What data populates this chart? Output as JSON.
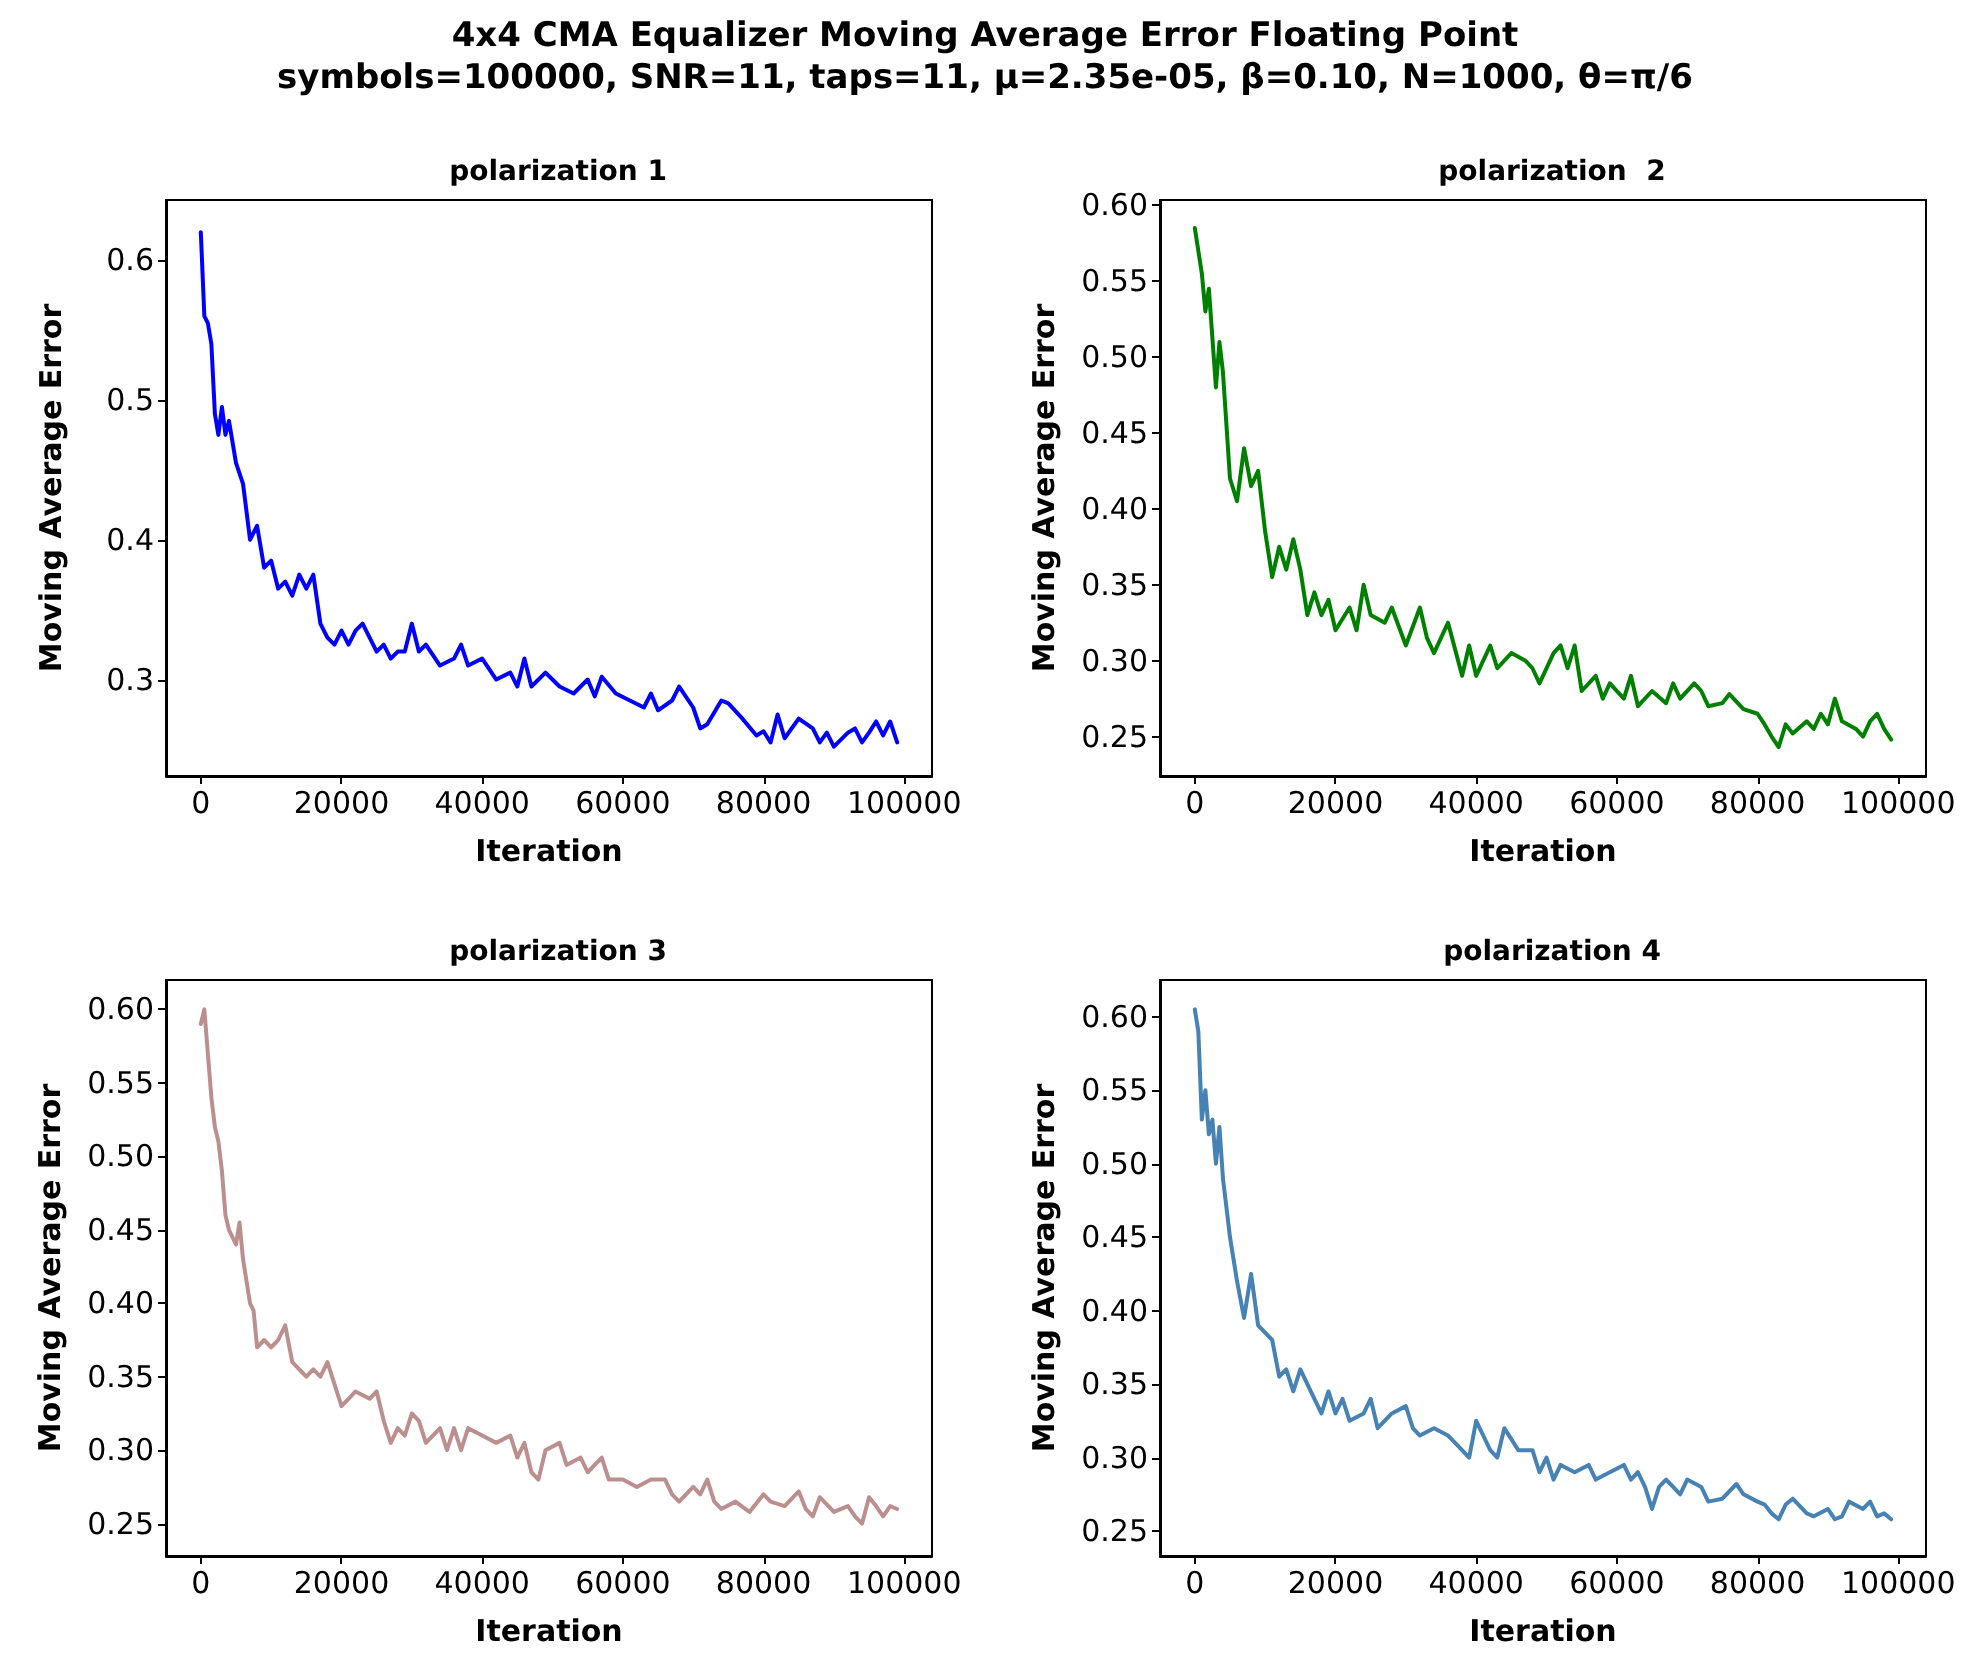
{
  "chart_data": [
    {
      "type": "line",
      "title": "polarization 1",
      "xlabel": "Iteration",
      "ylabel": "Moving Average Error",
      "annotations": [
        "4x4 CMA Equalizer Moving Average Error Floating Point",
        "symbols=100000, SNR=11, taps=11, μ=2.35e-05, β=0.10, N=1000, θ=π/6"
      ],
      "x": [
        0,
        500,
        1000,
        1500,
        2000,
        2500,
        3000,
        3500,
        4000,
        5000,
        6000,
        7000,
        8000,
        9000,
        10000,
        11000,
        12000,
        13000,
        14000,
        15000,
        16000,
        17000,
        18000,
        19000,
        20000,
        21000,
        22000,
        23000,
        24000,
        25000,
        26000,
        27000,
        28000,
        29000,
        30000,
        31000,
        32000,
        34000,
        36000,
        37000,
        38000,
        40000,
        42000,
        44000,
        45000,
        46000,
        47000,
        49000,
        51000,
        53000,
        55000,
        56000,
        57000,
        59000,
        61000,
        63000,
        64000,
        65000,
        67000,
        68000,
        70000,
        71000,
        72000,
        74000,
        75000,
        77000,
        79000,
        80000,
        81000,
        82000,
        83000,
        85000,
        87000,
        88000,
        89000,
        90000,
        92000,
        93000,
        94000,
        95000,
        96000,
        97000,
        98000,
        99000
      ],
      "series": [
        {
          "color": "#0000ff",
          "values": [
            0.62,
            0.56,
            0.555,
            0.54,
            0.49,
            0.475,
            0.495,
            0.475,
            0.485,
            0.455,
            0.44,
            0.4,
            0.41,
            0.38,
            0.385,
            0.365,
            0.37,
            0.36,
            0.375,
            0.365,
            0.375,
            0.34,
            0.33,
            0.325,
            0.335,
            0.325,
            0.335,
            0.34,
            0.33,
            0.32,
            0.325,
            0.315,
            0.32,
            0.32,
            0.34,
            0.32,
            0.325,
            0.31,
            0.315,
            0.325,
            0.31,
            0.315,
            0.3,
            0.305,
            0.295,
            0.315,
            0.295,
            0.305,
            0.295,
            0.29,
            0.3,
            0.288,
            0.302,
            0.29,
            0.285,
            0.28,
            0.29,
            0.278,
            0.285,
            0.295,
            0.28,
            0.265,
            0.268,
            0.285,
            0.283,
            0.272,
            0.26,
            0.263,
            0.255,
            0.275,
            0.258,
            0.272,
            0.265,
            0.255,
            0.262,
            0.252,
            0.262,
            0.265,
            0.255,
            0.262,
            0.27,
            0.26,
            0.27,
            0.255
          ]
        }
      ],
      "xlim": [
        -4950,
        103950
      ],
      "xticks": [
        0,
        20000,
        40000,
        60000,
        80000,
        100000
      ],
      "ylim": [
        0.231,
        0.643
      ],
      "yticks": [
        0.3,
        0.4,
        0.5,
        0.6
      ],
      "grid": false,
      "marker": "none",
      "line_style": "solid"
    },
    {
      "type": "line",
      "title": "polarization  2",
      "xlabel": "Iteration",
      "ylabel": "Moving Average Error",
      "x": [
        0,
        1000,
        1500,
        2000,
        3000,
        3500,
        4000,
        5000,
        6000,
        7000,
        8000,
        9000,
        10000,
        11000,
        12000,
        13000,
        14000,
        15000,
        16000,
        17000,
        18000,
        19000,
        20000,
        22000,
        23000,
        24000,
        25000,
        27000,
        28000,
        30000,
        32000,
        33000,
        34000,
        35000,
        36000,
        38000,
        39000,
        40000,
        42000,
        43000,
        45000,
        47000,
        48000,
        49000,
        51000,
        52000,
        53000,
        54000,
        55000,
        57000,
        58000,
        59000,
        61000,
        62000,
        63000,
        65000,
        67000,
        68000,
        69000,
        71000,
        72000,
        73000,
        75000,
        76000,
        78000,
        80000,
        81000,
        82000,
        83000,
        84000,
        85000,
        87000,
        88000,
        89000,
        90000,
        91000,
        92000,
        94000,
        95000,
        96000,
        97000,
        98000,
        99000
      ],
      "series": [
        {
          "color": "#008000",
          "values": [
            0.585,
            0.555,
            0.53,
            0.545,
            0.48,
            0.51,
            0.49,
            0.42,
            0.405,
            0.44,
            0.415,
            0.425,
            0.385,
            0.355,
            0.375,
            0.36,
            0.38,
            0.36,
            0.33,
            0.345,
            0.33,
            0.34,
            0.32,
            0.335,
            0.32,
            0.35,
            0.33,
            0.325,
            0.335,
            0.31,
            0.335,
            0.315,
            0.305,
            0.315,
            0.325,
            0.29,
            0.31,
            0.29,
            0.31,
            0.295,
            0.305,
            0.3,
            0.295,
            0.285,
            0.305,
            0.31,
            0.295,
            0.31,
            0.28,
            0.29,
            0.275,
            0.285,
            0.275,
            0.29,
            0.27,
            0.28,
            0.272,
            0.285,
            0.275,
            0.285,
            0.28,
            0.27,
            0.272,
            0.278,
            0.268,
            0.265,
            0.258,
            0.25,
            0.243,
            0.258,
            0.252,
            0.26,
            0.255,
            0.265,
            0.258,
            0.275,
            0.26,
            0.255,
            0.25,
            0.26,
            0.265,
            0.255,
            0.248
          ]
        }
      ],
      "xlim": [
        -4950,
        103950
      ],
      "xticks": [
        0,
        20000,
        40000,
        60000,
        80000,
        100000
      ],
      "ylim": [
        0.224,
        0.6035
      ],
      "yticks": [
        {
          "value": 0.25,
          "label": "0.25"
        },
        {
          "value": 0.3,
          "label": "0.30"
        },
        {
          "value": 0.35,
          "label": "0.35"
        },
        {
          "value": 0.4,
          "label": "0.40"
        },
        {
          "value": 0.45,
          "label": "0.45"
        },
        {
          "value": 0.5,
          "label": "0.50"
        },
        {
          "value": 0.55,
          "label": "0.55"
        },
        {
          "value": 0.6,
          "label": "0.60"
        }
      ],
      "grid": false,
      "marker": "none",
      "line_style": "solid"
    },
    {
      "type": "line",
      "title": "polarization 3",
      "xlabel": "Iteration",
      "ylabel": "Moving Average Error",
      "x": [
        0,
        500,
        1000,
        1500,
        2000,
        2500,
        3000,
        3500,
        4000,
        5000,
        5500,
        6000,
        7000,
        7500,
        8000,
        9000,
        10000,
        11000,
        12000,
        13000,
        14000,
        15000,
        16000,
        17000,
        18000,
        19000,
        20000,
        21000,
        22000,
        24000,
        25000,
        26000,
        27000,
        28000,
        29000,
        30000,
        31000,
        32000,
        34000,
        35000,
        36000,
        37000,
        38000,
        40000,
        42000,
        44000,
        45000,
        46000,
        47000,
        48000,
        49000,
        51000,
        52000,
        54000,
        55000,
        57000,
        58000,
        60000,
        62000,
        64000,
        66000,
        67000,
        68000,
        70000,
        71000,
        72000,
        73000,
        74000,
        76000,
        78000,
        80000,
        81000,
        83000,
        85000,
        86000,
        87000,
        88000,
        90000,
        92000,
        93000,
        94000,
        95000,
        96000,
        97000,
        98000,
        99000
      ],
      "series": [
        {
          "color": "#bc8f8f",
          "values": [
            0.59,
            0.6,
            0.57,
            0.54,
            0.52,
            0.51,
            0.49,
            0.46,
            0.45,
            0.44,
            0.455,
            0.43,
            0.4,
            0.395,
            0.37,
            0.375,
            0.37,
            0.375,
            0.385,
            0.36,
            0.355,
            0.35,
            0.355,
            0.35,
            0.36,
            0.345,
            0.33,
            0.335,
            0.34,
            0.335,
            0.34,
            0.32,
            0.305,
            0.315,
            0.31,
            0.325,
            0.32,
            0.305,
            0.315,
            0.3,
            0.315,
            0.3,
            0.315,
            0.31,
            0.305,
            0.31,
            0.295,
            0.305,
            0.285,
            0.28,
            0.3,
            0.305,
            0.29,
            0.295,
            0.285,
            0.295,
            0.28,
            0.28,
            0.275,
            0.28,
            0.28,
            0.27,
            0.265,
            0.275,
            0.27,
            0.28,
            0.265,
            0.26,
            0.265,
            0.258,
            0.27,
            0.265,
            0.262,
            0.272,
            0.26,
            0.255,
            0.268,
            0.258,
            0.262,
            0.255,
            0.25,
            0.268,
            0.262,
            0.255,
            0.262,
            0.26
          ]
        }
      ],
      "xlim": [
        -4950,
        103950
      ],
      "xticks": [
        0,
        20000,
        40000,
        60000,
        80000,
        100000
      ],
      "ylim": [
        0.228,
        0.62
      ],
      "yticks": [
        {
          "value": 0.25,
          "label": "0.25"
        },
        {
          "value": 0.3,
          "label": "0.30"
        },
        {
          "value": 0.35,
          "label": "0.35"
        },
        {
          "value": 0.4,
          "label": "0.40"
        },
        {
          "value": 0.45,
          "label": "0.45"
        },
        {
          "value": 0.5,
          "label": "0.50"
        },
        {
          "value": 0.55,
          "label": "0.55"
        },
        {
          "value": 0.6,
          "label": "0.60"
        }
      ],
      "grid": false,
      "marker": "none",
      "line_style": "solid"
    },
    {
      "type": "line",
      "title": "polarization 4",
      "xlabel": "Iteration",
      "ylabel": "Moving Average Error",
      "x": [
        0,
        500,
        1000,
        1500,
        2000,
        2500,
        3000,
        3500,
        4000,
        5000,
        6000,
        7000,
        8000,
        9000,
        10000,
        11000,
        12000,
        13000,
        14000,
        15000,
        16000,
        17000,
        18000,
        19000,
        20000,
        21000,
        22000,
        24000,
        25000,
        26000,
        28000,
        30000,
        31000,
        32000,
        34000,
        36000,
        38000,
        39000,
        40000,
        41000,
        42000,
        43000,
        44000,
        46000,
        48000,
        49000,
        50000,
        51000,
        52000,
        54000,
        56000,
        57000,
        59000,
        61000,
        62000,
        63000,
        64000,
        65000,
        66000,
        67000,
        68000,
        69000,
        70000,
        72000,
        73000,
        75000,
        77000,
        78000,
        80000,
        81000,
        82000,
        83000,
        84000,
        85000,
        87000,
        88000,
        90000,
        91000,
        92000,
        93000,
        95000,
        96000,
        97000,
        98000,
        99000
      ],
      "series": [
        {
          "color": "#4682b4",
          "values": [
            0.605,
            0.59,
            0.53,
            0.55,
            0.52,
            0.53,
            0.5,
            0.525,
            0.49,
            0.45,
            0.42,
            0.395,
            0.425,
            0.39,
            0.385,
            0.38,
            0.355,
            0.36,
            0.345,
            0.36,
            0.35,
            0.34,
            0.33,
            0.345,
            0.33,
            0.34,
            0.325,
            0.33,
            0.34,
            0.32,
            0.33,
            0.335,
            0.32,
            0.315,
            0.32,
            0.315,
            0.305,
            0.3,
            0.325,
            0.315,
            0.305,
            0.3,
            0.32,
            0.305,
            0.305,
            0.29,
            0.3,
            0.285,
            0.295,
            0.29,
            0.295,
            0.285,
            0.29,
            0.295,
            0.285,
            0.29,
            0.28,
            0.265,
            0.28,
            0.285,
            0.28,
            0.275,
            0.285,
            0.28,
            0.27,
            0.272,
            0.282,
            0.275,
            0.27,
            0.268,
            0.262,
            0.258,
            0.268,
            0.272,
            0.262,
            0.26,
            0.265,
            0.258,
            0.26,
            0.27,
            0.265,
            0.27,
            0.26,
            0.262,
            0.258
          ]
        }
      ],
      "xlim": [
        -4950,
        103950
      ],
      "xticks": [
        0,
        20000,
        40000,
        60000,
        80000,
        100000
      ],
      "ylim": [
        0.233,
        0.625
      ],
      "yticks": [
        {
          "value": 0.25,
          "label": "0.25"
        },
        {
          "value": 0.3,
          "label": "0.30"
        },
        {
          "value": 0.35,
          "label": "0.35"
        },
        {
          "value": 0.4,
          "label": "0.40"
        },
        {
          "value": 0.45,
          "label": "0.45"
        },
        {
          "value": 0.5,
          "label": "0.50"
        },
        {
          "value": 0.55,
          "label": "0.55"
        },
        {
          "value": 0.6,
          "label": "0.60"
        }
      ],
      "grid": false,
      "marker": "none",
      "line_style": "solid"
    }
  ]
}
